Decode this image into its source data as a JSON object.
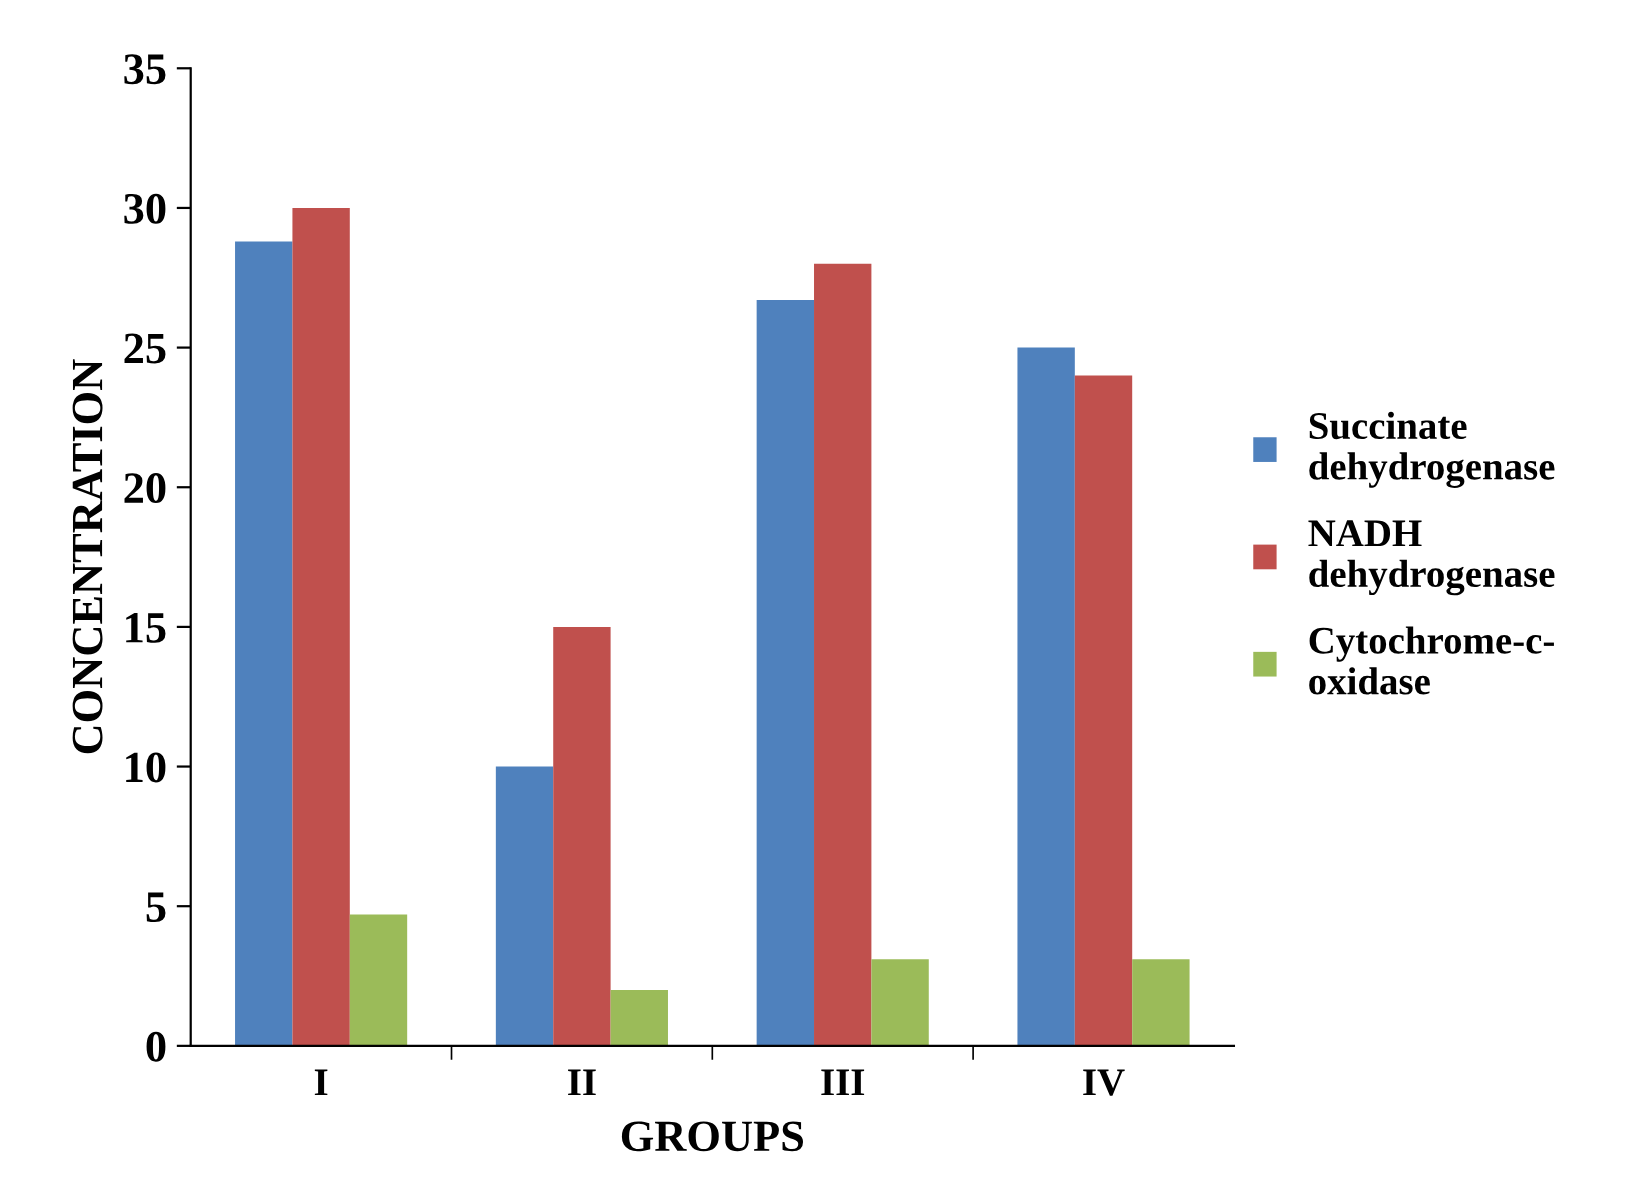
{
  "chart_data": {
    "type": "bar",
    "xlabel": "GROUPS",
    "ylabel": "CONCENTRATION",
    "categories": [
      "I",
      "II",
      "III",
      "IV"
    ],
    "series": [
      {
        "name": "Succinate dehydrogenase",
        "color": "#4f81bd",
        "values": [
          28.8,
          10,
          26.7,
          25
        ]
      },
      {
        "name": "NADH dehydrogenase",
        "color": "#c0504d",
        "values": [
          30,
          15,
          28,
          24
        ]
      },
      {
        "name": "Cytochrome-c-oxidase",
        "color": "#9bbb59",
        "values": [
          4.7,
          2,
          3.1,
          3.1
        ]
      }
    ],
    "ylim": [
      0,
      35
    ],
    "yticks": [
      0,
      5,
      10,
      15,
      20,
      25,
      30,
      35
    ],
    "grid": false,
    "legend": "right"
  }
}
